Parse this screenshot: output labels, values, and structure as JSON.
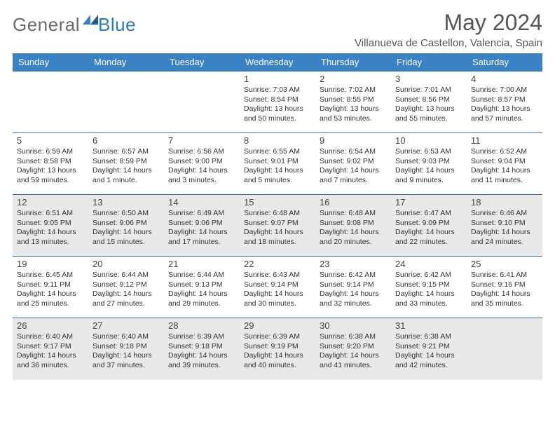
{
  "logo": {
    "text1": "General",
    "text2": "Blue"
  },
  "title": "May 2024",
  "location": "Villanueva de Castellon, Valencia, Spain",
  "colors": {
    "header_bg": "#3b82c4",
    "header_text": "#ffffff",
    "row_border": "#3b6fa0",
    "stripe_bg": "#e9e9e9",
    "logo_gray": "#6b6b6b",
    "logo_blue": "#2b7bbf",
    "body_text": "#333333"
  },
  "typography": {
    "title_fontsize": 32,
    "location_fontsize": 15,
    "dayheader_fontsize": 13,
    "daynum_fontsize": 13,
    "daytext_fontsize": 10.5
  },
  "day_headers": [
    "Sunday",
    "Monday",
    "Tuesday",
    "Wednesday",
    "Thursday",
    "Friday",
    "Saturday"
  ],
  "weeks": [
    {
      "stripe": false,
      "days": [
        {
          "num": "",
          "lines": [
            "",
            "",
            "",
            ""
          ]
        },
        {
          "num": "",
          "lines": [
            "",
            "",
            "",
            ""
          ]
        },
        {
          "num": "",
          "lines": [
            "",
            "",
            "",
            ""
          ]
        },
        {
          "num": "1",
          "lines": [
            "Sunrise: 7:03 AM",
            "Sunset: 8:54 PM",
            "Daylight: 13 hours",
            "and 50 minutes."
          ]
        },
        {
          "num": "2",
          "lines": [
            "Sunrise: 7:02 AM",
            "Sunset: 8:55 PM",
            "Daylight: 13 hours",
            "and 53 minutes."
          ]
        },
        {
          "num": "3",
          "lines": [
            "Sunrise: 7:01 AM",
            "Sunset: 8:56 PM",
            "Daylight: 13 hours",
            "and 55 minutes."
          ]
        },
        {
          "num": "4",
          "lines": [
            "Sunrise: 7:00 AM",
            "Sunset: 8:57 PM",
            "Daylight: 13 hours",
            "and 57 minutes."
          ]
        }
      ]
    },
    {
      "stripe": false,
      "days": [
        {
          "num": "5",
          "lines": [
            "Sunrise: 6:59 AM",
            "Sunset: 8:58 PM",
            "Daylight: 13 hours",
            "and 59 minutes."
          ]
        },
        {
          "num": "6",
          "lines": [
            "Sunrise: 6:57 AM",
            "Sunset: 8:59 PM",
            "Daylight: 14 hours",
            "and 1 minute."
          ]
        },
        {
          "num": "7",
          "lines": [
            "Sunrise: 6:56 AM",
            "Sunset: 9:00 PM",
            "Daylight: 14 hours",
            "and 3 minutes."
          ]
        },
        {
          "num": "8",
          "lines": [
            "Sunrise: 6:55 AM",
            "Sunset: 9:01 PM",
            "Daylight: 14 hours",
            "and 5 minutes."
          ]
        },
        {
          "num": "9",
          "lines": [
            "Sunrise: 6:54 AM",
            "Sunset: 9:02 PM",
            "Daylight: 14 hours",
            "and 7 minutes."
          ]
        },
        {
          "num": "10",
          "lines": [
            "Sunrise: 6:53 AM",
            "Sunset: 9:03 PM",
            "Daylight: 14 hours",
            "and 9 minutes."
          ]
        },
        {
          "num": "11",
          "lines": [
            "Sunrise: 6:52 AM",
            "Sunset: 9:04 PM",
            "Daylight: 14 hours",
            "and 11 minutes."
          ]
        }
      ]
    },
    {
      "stripe": true,
      "days": [
        {
          "num": "12",
          "lines": [
            "Sunrise: 6:51 AM",
            "Sunset: 9:05 PM",
            "Daylight: 14 hours",
            "and 13 minutes."
          ]
        },
        {
          "num": "13",
          "lines": [
            "Sunrise: 6:50 AM",
            "Sunset: 9:06 PM",
            "Daylight: 14 hours",
            "and 15 minutes."
          ]
        },
        {
          "num": "14",
          "lines": [
            "Sunrise: 6:49 AM",
            "Sunset: 9:06 PM",
            "Daylight: 14 hours",
            "and 17 minutes."
          ]
        },
        {
          "num": "15",
          "lines": [
            "Sunrise: 6:48 AM",
            "Sunset: 9:07 PM",
            "Daylight: 14 hours",
            "and 18 minutes."
          ]
        },
        {
          "num": "16",
          "lines": [
            "Sunrise: 6:48 AM",
            "Sunset: 9:08 PM",
            "Daylight: 14 hours",
            "and 20 minutes."
          ]
        },
        {
          "num": "17",
          "lines": [
            "Sunrise: 6:47 AM",
            "Sunset: 9:09 PM",
            "Daylight: 14 hours",
            "and 22 minutes."
          ]
        },
        {
          "num": "18",
          "lines": [
            "Sunrise: 6:46 AM",
            "Sunset: 9:10 PM",
            "Daylight: 14 hours",
            "and 24 minutes."
          ]
        }
      ]
    },
    {
      "stripe": false,
      "days": [
        {
          "num": "19",
          "lines": [
            "Sunrise: 6:45 AM",
            "Sunset: 9:11 PM",
            "Daylight: 14 hours",
            "and 25 minutes."
          ]
        },
        {
          "num": "20",
          "lines": [
            "Sunrise: 6:44 AM",
            "Sunset: 9:12 PM",
            "Daylight: 14 hours",
            "and 27 minutes."
          ]
        },
        {
          "num": "21",
          "lines": [
            "Sunrise: 6:44 AM",
            "Sunset: 9:13 PM",
            "Daylight: 14 hours",
            "and 29 minutes."
          ]
        },
        {
          "num": "22",
          "lines": [
            "Sunrise: 6:43 AM",
            "Sunset: 9:14 PM",
            "Daylight: 14 hours",
            "and 30 minutes."
          ]
        },
        {
          "num": "23",
          "lines": [
            "Sunrise: 6:42 AM",
            "Sunset: 9:14 PM",
            "Daylight: 14 hours",
            "and 32 minutes."
          ]
        },
        {
          "num": "24",
          "lines": [
            "Sunrise: 6:42 AM",
            "Sunset: 9:15 PM",
            "Daylight: 14 hours",
            "and 33 minutes."
          ]
        },
        {
          "num": "25",
          "lines": [
            "Sunrise: 6:41 AM",
            "Sunset: 9:16 PM",
            "Daylight: 14 hours",
            "and 35 minutes."
          ]
        }
      ]
    },
    {
      "stripe": true,
      "days": [
        {
          "num": "26",
          "lines": [
            "Sunrise: 6:40 AM",
            "Sunset: 9:17 PM",
            "Daylight: 14 hours",
            "and 36 minutes."
          ]
        },
        {
          "num": "27",
          "lines": [
            "Sunrise: 6:40 AM",
            "Sunset: 9:18 PM",
            "Daylight: 14 hours",
            "and 37 minutes."
          ]
        },
        {
          "num": "28",
          "lines": [
            "Sunrise: 6:39 AM",
            "Sunset: 9:18 PM",
            "Daylight: 14 hours",
            "and 39 minutes."
          ]
        },
        {
          "num": "29",
          "lines": [
            "Sunrise: 6:39 AM",
            "Sunset: 9:19 PM",
            "Daylight: 14 hours",
            "and 40 minutes."
          ]
        },
        {
          "num": "30",
          "lines": [
            "Sunrise: 6:38 AM",
            "Sunset: 9:20 PM",
            "Daylight: 14 hours",
            "and 41 minutes."
          ]
        },
        {
          "num": "31",
          "lines": [
            "Sunrise: 6:38 AM",
            "Sunset: 9:21 PM",
            "Daylight: 14 hours",
            "and 42 minutes."
          ]
        },
        {
          "num": "",
          "lines": [
            "",
            "",
            "",
            ""
          ]
        }
      ]
    }
  ]
}
